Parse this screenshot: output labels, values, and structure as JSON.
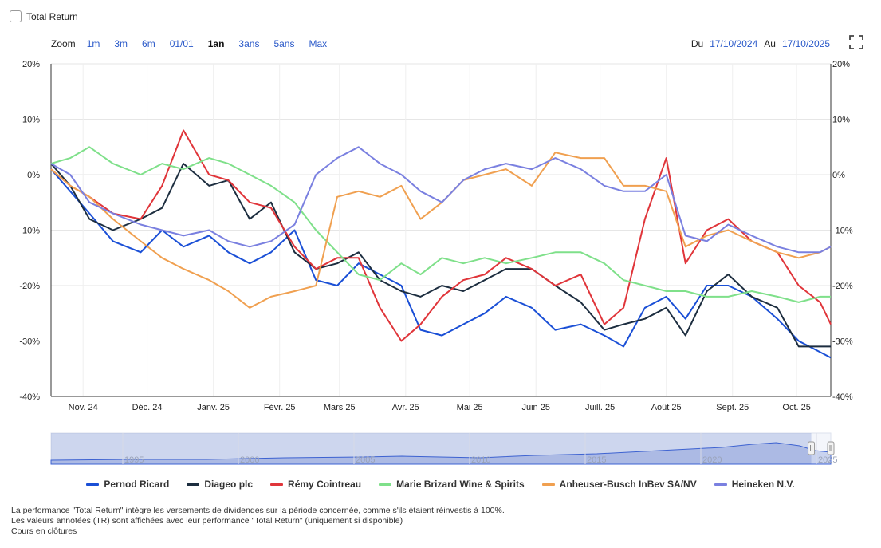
{
  "controls": {
    "total_return_label": "Total Return",
    "zoom_label": "Zoom",
    "zoom_buttons": [
      "1m",
      "3m",
      "6m",
      "01/01",
      "1an",
      "3ans",
      "5ans",
      "Max"
    ],
    "zoom_active": "1an",
    "from_label": "Du",
    "from_date": "17/10/2024",
    "to_label": "Au",
    "to_date": "17/10/2025"
  },
  "chart_data": {
    "type": "line",
    "x_type": "time",
    "x_range": [
      "2024-10-17",
      "2025-10-17"
    ],
    "ylim": [
      -40,
      20
    ],
    "y_ticks": [
      20,
      10,
      0,
      -10,
      -20,
      -30,
      -40
    ],
    "y_tick_labels": [
      "20%",
      "10%",
      "0%",
      "-10%",
      "-20%",
      "-30%",
      "-40%"
    ],
    "x_tick_labels": [
      {
        "date": "2024-11-01",
        "label": "Nov. 24"
      },
      {
        "date": "2024-12-01",
        "label": "Déc. 24"
      },
      {
        "date": "2025-01-01",
        "label": "Janv. 25"
      },
      {
        "date": "2025-02-01",
        "label": "Févr. 25"
      },
      {
        "date": "2025-03-01",
        "label": "Mars 25"
      },
      {
        "date": "2025-04-01",
        "label": "Avr. 25"
      },
      {
        "date": "2025-05-01",
        "label": "Mai 25"
      },
      {
        "date": "2025-06-01",
        "label": "Juin 25"
      },
      {
        "date": "2025-07-01",
        "label": "Juill. 25"
      },
      {
        "date": "2025-08-01",
        "label": "Août 25"
      },
      {
        "date": "2025-09-01",
        "label": "Sept. 25"
      },
      {
        "date": "2025-10-01",
        "label": "Oct. 25"
      }
    ],
    "grid": true,
    "legend_position": "bottom",
    "series": [
      {
        "name": "Pernod Ricard",
        "color": "#1a4fd6",
        "x": [
          "2024-10-17",
          "2024-10-26",
          "2024-11-04",
          "2024-11-15",
          "2024-11-28",
          "2024-12-08",
          "2024-12-18",
          "2024-12-30",
          "2025-01-08",
          "2025-01-18",
          "2025-01-28",
          "2025-02-08",
          "2025-02-18",
          "2025-02-28",
          "2025-03-10",
          "2025-03-20",
          "2025-03-30",
          "2025-04-08",
          "2025-04-18",
          "2025-04-28",
          "2025-05-08",
          "2025-05-18",
          "2025-05-30",
          "2025-06-10",
          "2025-06-22",
          "2025-07-03",
          "2025-07-12",
          "2025-07-22",
          "2025-08-01",
          "2025-08-10",
          "2025-08-20",
          "2025-08-30",
          "2025-09-10",
          "2025-09-22",
          "2025-10-02",
          "2025-10-12",
          "2025-10-17"
        ],
        "y": [
          1,
          -3,
          -7,
          -12,
          -14,
          -10,
          -13,
          -11,
          -14,
          -16,
          -14,
          -10,
          -19,
          -20,
          -16,
          -18,
          -20,
          -28,
          -29,
          -27,
          -25,
          -22,
          -24,
          -28,
          -27,
          -29,
          -31,
          -24,
          -22,
          -26,
          -20,
          -20,
          -22,
          -26,
          -30,
          -32,
          -33
        ]
      },
      {
        "name": "Diageo plc",
        "color": "#1d2e40",
        "x": [
          "2024-10-17",
          "2024-10-26",
          "2024-11-04",
          "2024-11-15",
          "2024-11-28",
          "2024-12-08",
          "2024-12-18",
          "2024-12-30",
          "2025-01-08",
          "2025-01-18",
          "2025-01-28",
          "2025-02-08",
          "2025-02-18",
          "2025-02-28",
          "2025-03-10",
          "2025-03-20",
          "2025-03-30",
          "2025-04-08",
          "2025-04-18",
          "2025-04-28",
          "2025-05-08",
          "2025-05-18",
          "2025-05-30",
          "2025-06-10",
          "2025-06-22",
          "2025-07-03",
          "2025-07-12",
          "2025-07-22",
          "2025-08-01",
          "2025-08-10",
          "2025-08-20",
          "2025-08-30",
          "2025-09-10",
          "2025-09-22",
          "2025-10-02",
          "2025-10-12",
          "2025-10-17"
        ],
        "y": [
          2,
          -2,
          -8,
          -10,
          -8,
          -6,
          2,
          -2,
          -1,
          -8,
          -5,
          -14,
          -17,
          -16,
          -14,
          -19,
          -21,
          -22,
          -20,
          -21,
          -19,
          -17,
          -17,
          -20,
          -23,
          -28,
          -27,
          -26,
          -24,
          -29,
          -21,
          -18,
          -22,
          -24,
          -31,
          -31,
          -31
        ]
      },
      {
        "name": "Rémy Cointreau",
        "color": "#e0353a",
        "x": [
          "2024-10-17",
          "2024-10-26",
          "2024-11-04",
          "2024-11-15",
          "2024-11-28",
          "2024-12-08",
          "2024-12-18",
          "2024-12-30",
          "2025-01-08",
          "2025-01-18",
          "2025-01-28",
          "2025-02-08",
          "2025-02-18",
          "2025-02-28",
          "2025-03-10",
          "2025-03-20",
          "2025-03-30",
          "2025-04-08",
          "2025-04-18",
          "2025-04-28",
          "2025-05-08",
          "2025-05-18",
          "2025-05-30",
          "2025-06-10",
          "2025-06-22",
          "2025-07-03",
          "2025-07-12",
          "2025-07-22",
          "2025-08-01",
          "2025-08-10",
          "2025-08-20",
          "2025-08-30",
          "2025-09-10",
          "2025-09-22",
          "2025-10-02",
          "2025-10-12",
          "2025-10-17"
        ],
        "y": [
          1,
          -2,
          -4,
          -7,
          -8,
          -2,
          8,
          0,
          -1,
          -5,
          -6,
          -13,
          -17,
          -15,
          -15,
          -24,
          -30,
          -27,
          -22,
          -19,
          -18,
          -15,
          -17,
          -20,
          -18,
          -27,
          -24,
          -8,
          3,
          -16,
          -10,
          -8,
          -12,
          -14,
          -20,
          -23,
          -27
        ]
      },
      {
        "name": "Marie Brizard Wine & Spirits",
        "color": "#7fe08a",
        "x": [
          "2024-10-17",
          "2024-10-26",
          "2024-11-04",
          "2024-11-15",
          "2024-11-28",
          "2024-12-08",
          "2024-12-18",
          "2024-12-30",
          "2025-01-08",
          "2025-01-18",
          "2025-01-28",
          "2025-02-08",
          "2025-02-18",
          "2025-02-28",
          "2025-03-10",
          "2025-03-20",
          "2025-03-30",
          "2025-04-08",
          "2025-04-18",
          "2025-04-28",
          "2025-05-08",
          "2025-05-18",
          "2025-05-30",
          "2025-06-10",
          "2025-06-22",
          "2025-07-03",
          "2025-07-12",
          "2025-07-22",
          "2025-08-01",
          "2025-08-10",
          "2025-08-20",
          "2025-08-30",
          "2025-09-10",
          "2025-09-22",
          "2025-10-02",
          "2025-10-12",
          "2025-10-17"
        ],
        "y": [
          2,
          3,
          5,
          2,
          0,
          2,
          1,
          3,
          2,
          0,
          -2,
          -5,
          -10,
          -14,
          -18,
          -19,
          -16,
          -18,
          -15,
          -16,
          -15,
          -16,
          -15,
          -14,
          -14,
          -16,
          -19,
          -20,
          -21,
          -21,
          -22,
          -22,
          -21,
          -22,
          -23,
          -22,
          -22
        ]
      },
      {
        "name": "Anheuser-Busch InBev SA/NV",
        "color": "#f0a050",
        "x": [
          "2024-10-17",
          "2024-10-26",
          "2024-11-04",
          "2024-11-15",
          "2024-11-28",
          "2024-12-08",
          "2024-12-18",
          "2024-12-30",
          "2025-01-08",
          "2025-01-18",
          "2025-01-28",
          "2025-02-08",
          "2025-02-18",
          "2025-02-28",
          "2025-03-10",
          "2025-03-20",
          "2025-03-30",
          "2025-04-08",
          "2025-04-18",
          "2025-04-28",
          "2025-05-08",
          "2025-05-18",
          "2025-05-30",
          "2025-06-10",
          "2025-06-22",
          "2025-07-03",
          "2025-07-12",
          "2025-07-22",
          "2025-08-01",
          "2025-08-10",
          "2025-08-20",
          "2025-08-30",
          "2025-09-10",
          "2025-09-22",
          "2025-10-02",
          "2025-10-12",
          "2025-10-17"
        ],
        "y": [
          1,
          -2,
          -4,
          -8,
          -12,
          -15,
          -17,
          -19,
          -21,
          -24,
          -22,
          -21,
          -20,
          -4,
          -3,
          -4,
          -2,
          -8,
          -5,
          -1,
          0,
          1,
          -2,
          4,
          3,
          3,
          -2,
          -2,
          -3,
          -13,
          -11,
          -10,
          -12,
          -14,
          -15,
          -14,
          -13
        ]
      },
      {
        "name": "Heineken N.V.",
        "color": "#7a80e0",
        "x": [
          "2024-10-17",
          "2024-10-26",
          "2024-11-04",
          "2024-11-15",
          "2024-11-28",
          "2024-12-08",
          "2024-12-18",
          "2024-12-30",
          "2025-01-08",
          "2025-01-18",
          "2025-01-28",
          "2025-02-08",
          "2025-02-18",
          "2025-02-28",
          "2025-03-10",
          "2025-03-20",
          "2025-03-30",
          "2025-04-08",
          "2025-04-18",
          "2025-04-28",
          "2025-05-08",
          "2025-05-18",
          "2025-05-30",
          "2025-06-10",
          "2025-06-22",
          "2025-07-03",
          "2025-07-12",
          "2025-07-22",
          "2025-08-01",
          "2025-08-10",
          "2025-08-20",
          "2025-08-30",
          "2025-09-10",
          "2025-09-22",
          "2025-10-02",
          "2025-10-12",
          "2025-10-17"
        ],
        "y": [
          2,
          0,
          -5,
          -7,
          -9,
          -10,
          -11,
          -10,
          -12,
          -13,
          -12,
          -9,
          0,
          3,
          5,
          2,
          0,
          -3,
          -5,
          -1,
          1,
          2,
          1,
          3,
          1,
          -2,
          -3,
          -3,
          0,
          -11,
          -12,
          -9,
          -11,
          -13,
          -14,
          -14,
          -13
        ]
      }
    ]
  },
  "navigator": {
    "year_labels": [
      "1995",
      "2000",
      "2005",
      "2010",
      "2015",
      "2020",
      "2025"
    ]
  },
  "legend": {
    "items": [
      {
        "label": "Pernod Ricard",
        "color": "#1a4fd6"
      },
      {
        "label": "Diageo plc",
        "color": "#1d2e40"
      },
      {
        "label": "Rémy Cointreau",
        "color": "#e0353a"
      },
      {
        "label": "Marie Brizard Wine & Spirits",
        "color": "#7fe08a"
      },
      {
        "label": "Anheuser-Busch InBev SA/NV",
        "color": "#f0a050"
      },
      {
        "label": "Heineken N.V.",
        "color": "#7a80e0"
      }
    ]
  },
  "footnotes": {
    "line1": "La performance \"Total Return\" intègre les versements de dividendes sur la période concernée, comme s'ils étaient réinvestis à 100%.",
    "line2": "Les valeurs annotées (TR) sont affichées avec leur performance \"Total Return\" (uniquement si disponible)",
    "line3": "Cours en clôtures"
  }
}
